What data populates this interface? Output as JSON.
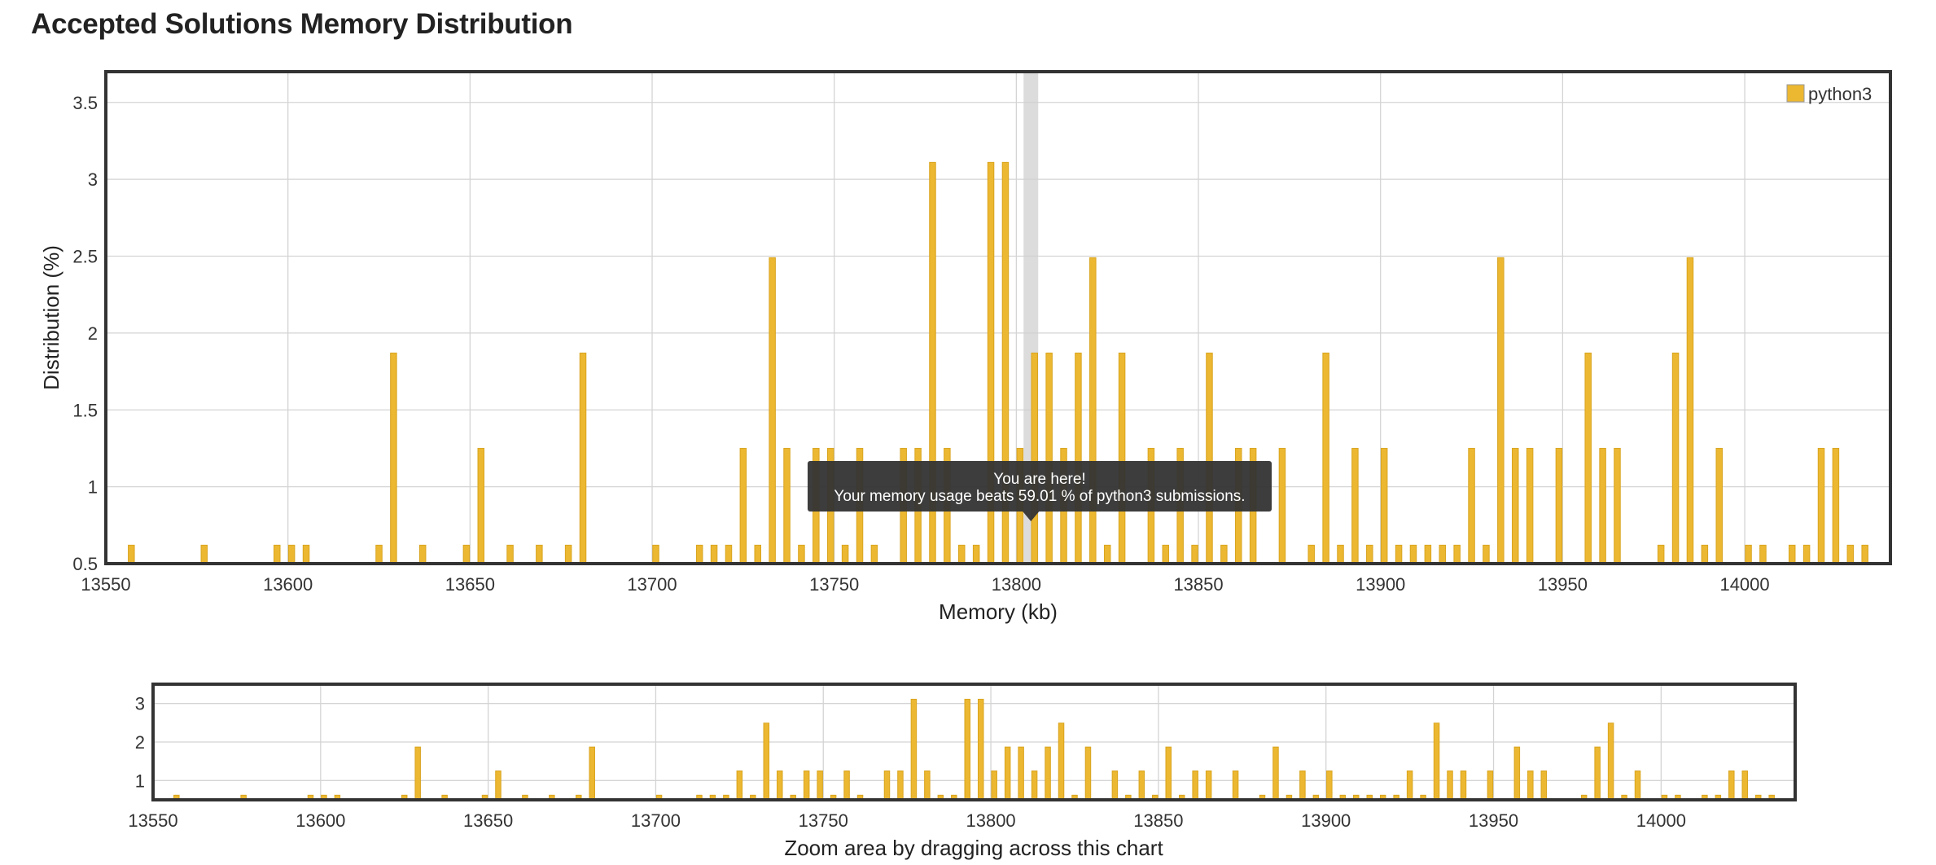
{
  "page": {
    "title": "Accepted Solutions Memory Distribution"
  },
  "colors": {
    "bar": "#ecb731",
    "bar_edge": "#d9a520",
    "highlight": "#d0d0d0",
    "tooltip_bg": "#333333",
    "frame": "#333333"
  },
  "chart_data": [
    {
      "type": "bar",
      "title": "",
      "xlabel": "Memory (kb)",
      "ylabel": "Distribution (%)",
      "xlim": [
        13550,
        14040
      ],
      "ylim": [
        0.5,
        3.7
      ],
      "xticks": [
        13550,
        13600,
        13650,
        13700,
        13750,
        13800,
        13850,
        13900,
        13950,
        14000
      ],
      "yticks": [
        0.5,
        1.0,
        1.5,
        2.0,
        2.5,
        3.0,
        3.5
      ],
      "grid": true,
      "legend": {
        "position": "top-right",
        "entries": [
          {
            "label": "python3",
            "color": "#ecb731"
          }
        ]
      },
      "highlight": {
        "x": 13804
      },
      "tooltip": {
        "line1": "You are here!",
        "line2": "Your memory usage beats 59.01 % of python3 submissions."
      },
      "series": [
        {
          "name": "python3",
          "x": [
            13557,
            13577,
            13597,
            13601,
            13605,
            13625,
            13629,
            13637,
            13649,
            13653,
            13661,
            13669,
            13677,
            13681,
            13701,
            13713,
            13717,
            13721,
            13725,
            13729,
            13733,
            13737,
            13741,
            13745,
            13749,
            13753,
            13757,
            13761,
            13769,
            13773,
            13777,
            13781,
            13785,
            13789,
            13793,
            13797,
            13801,
            13805,
            13809,
            13813,
            13817,
            13821,
            13825,
            13829,
            13837,
            13841,
            13845,
            13849,
            13853,
            13857,
            13861,
            13865,
            13873,
            13881,
            13885,
            13889,
            13893,
            13897,
            13901,
            13905,
            13909,
            13913,
            13917,
            13921,
            13925,
            13929,
            13933,
            13937,
            13941,
            13949,
            13957,
            13961,
            13965,
            13977,
            13981,
            13985,
            13989,
            13993,
            14001,
            14005,
            14013,
            14017,
            14021,
            14025,
            14029,
            14033
          ],
          "values": [
            0.62,
            0.62,
            0.62,
            0.62,
            0.62,
            0.62,
            1.87,
            0.62,
            0.62,
            1.25,
            0.62,
            0.62,
            0.62,
            1.87,
            0.62,
            0.62,
            0.62,
            0.62,
            1.25,
            0.62,
            2.49,
            1.25,
            0.62,
            1.25,
            1.25,
            0.62,
            1.25,
            0.62,
            1.25,
            1.25,
            3.11,
            1.25,
            0.62,
            0.62,
            3.11,
            3.11,
            1.25,
            1.87,
            1.87,
            1.25,
            1.87,
            2.49,
            0.62,
            1.87,
            1.25,
            0.62,
            1.25,
            0.62,
            1.87,
            0.62,
            1.25,
            1.25,
            1.25,
            0.62,
            1.87,
            0.62,
            1.25,
            0.62,
            1.25,
            0.62,
            0.62,
            0.62,
            0.62,
            0.62,
            1.25,
            0.62,
            2.49,
            1.25,
            1.25,
            1.25,
            1.87,
            1.25,
            1.25,
            0.62,
            1.87,
            2.49,
            0.62,
            1.25,
            0.62,
            0.62,
            0.62,
            0.62,
            1.25,
            1.25,
            0.62,
            0.62
          ]
        }
      ]
    },
    {
      "type": "bar",
      "title": "",
      "xlabel": "Zoom area by dragging across this chart",
      "ylabel": "",
      "xlim": [
        13550,
        14040
      ],
      "ylim": [
        0.5,
        3.5
      ],
      "xticks": [
        13550,
        13600,
        13650,
        13700,
        13750,
        13800,
        13850,
        13900,
        13950,
        14000
      ],
      "yticks": [
        1,
        2,
        3
      ],
      "grid": true,
      "series_ref": "python3"
    }
  ]
}
